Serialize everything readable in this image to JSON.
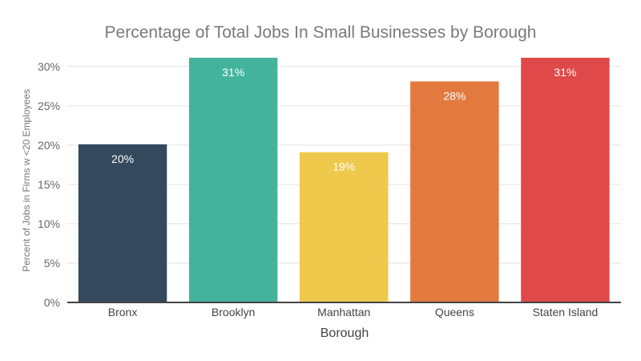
{
  "chart_data": {
    "type": "bar",
    "title": "Percentage of Total Jobs In Small Businesses by Borough",
    "xlabel": "Borough",
    "ylabel": "Percent of Jobs in Firms w <20 Employees",
    "categories": [
      "Bronx",
      "Brooklyn",
      "Manhattan",
      "Queens",
      "Staten Island"
    ],
    "values": [
      20.1,
      31.1,
      19.1,
      28.1,
      31.1
    ],
    "data_labels": [
      "20%",
      "31%",
      "19%",
      "28%",
      "31%"
    ],
    "colors": [
      "#34495e",
      "#44b39d",
      "#efc94c",
      "#e27a3f",
      "#df4949"
    ],
    "ylim": [
      0,
      31.1
    ],
    "yticks": [
      0,
      5,
      10,
      15,
      20,
      25,
      30
    ],
    "ytick_labels": [
      "0%",
      "5%",
      "10%",
      "15%",
      "20%",
      "25%",
      "30%"
    ],
    "grid": true,
    "legend": "none"
  }
}
